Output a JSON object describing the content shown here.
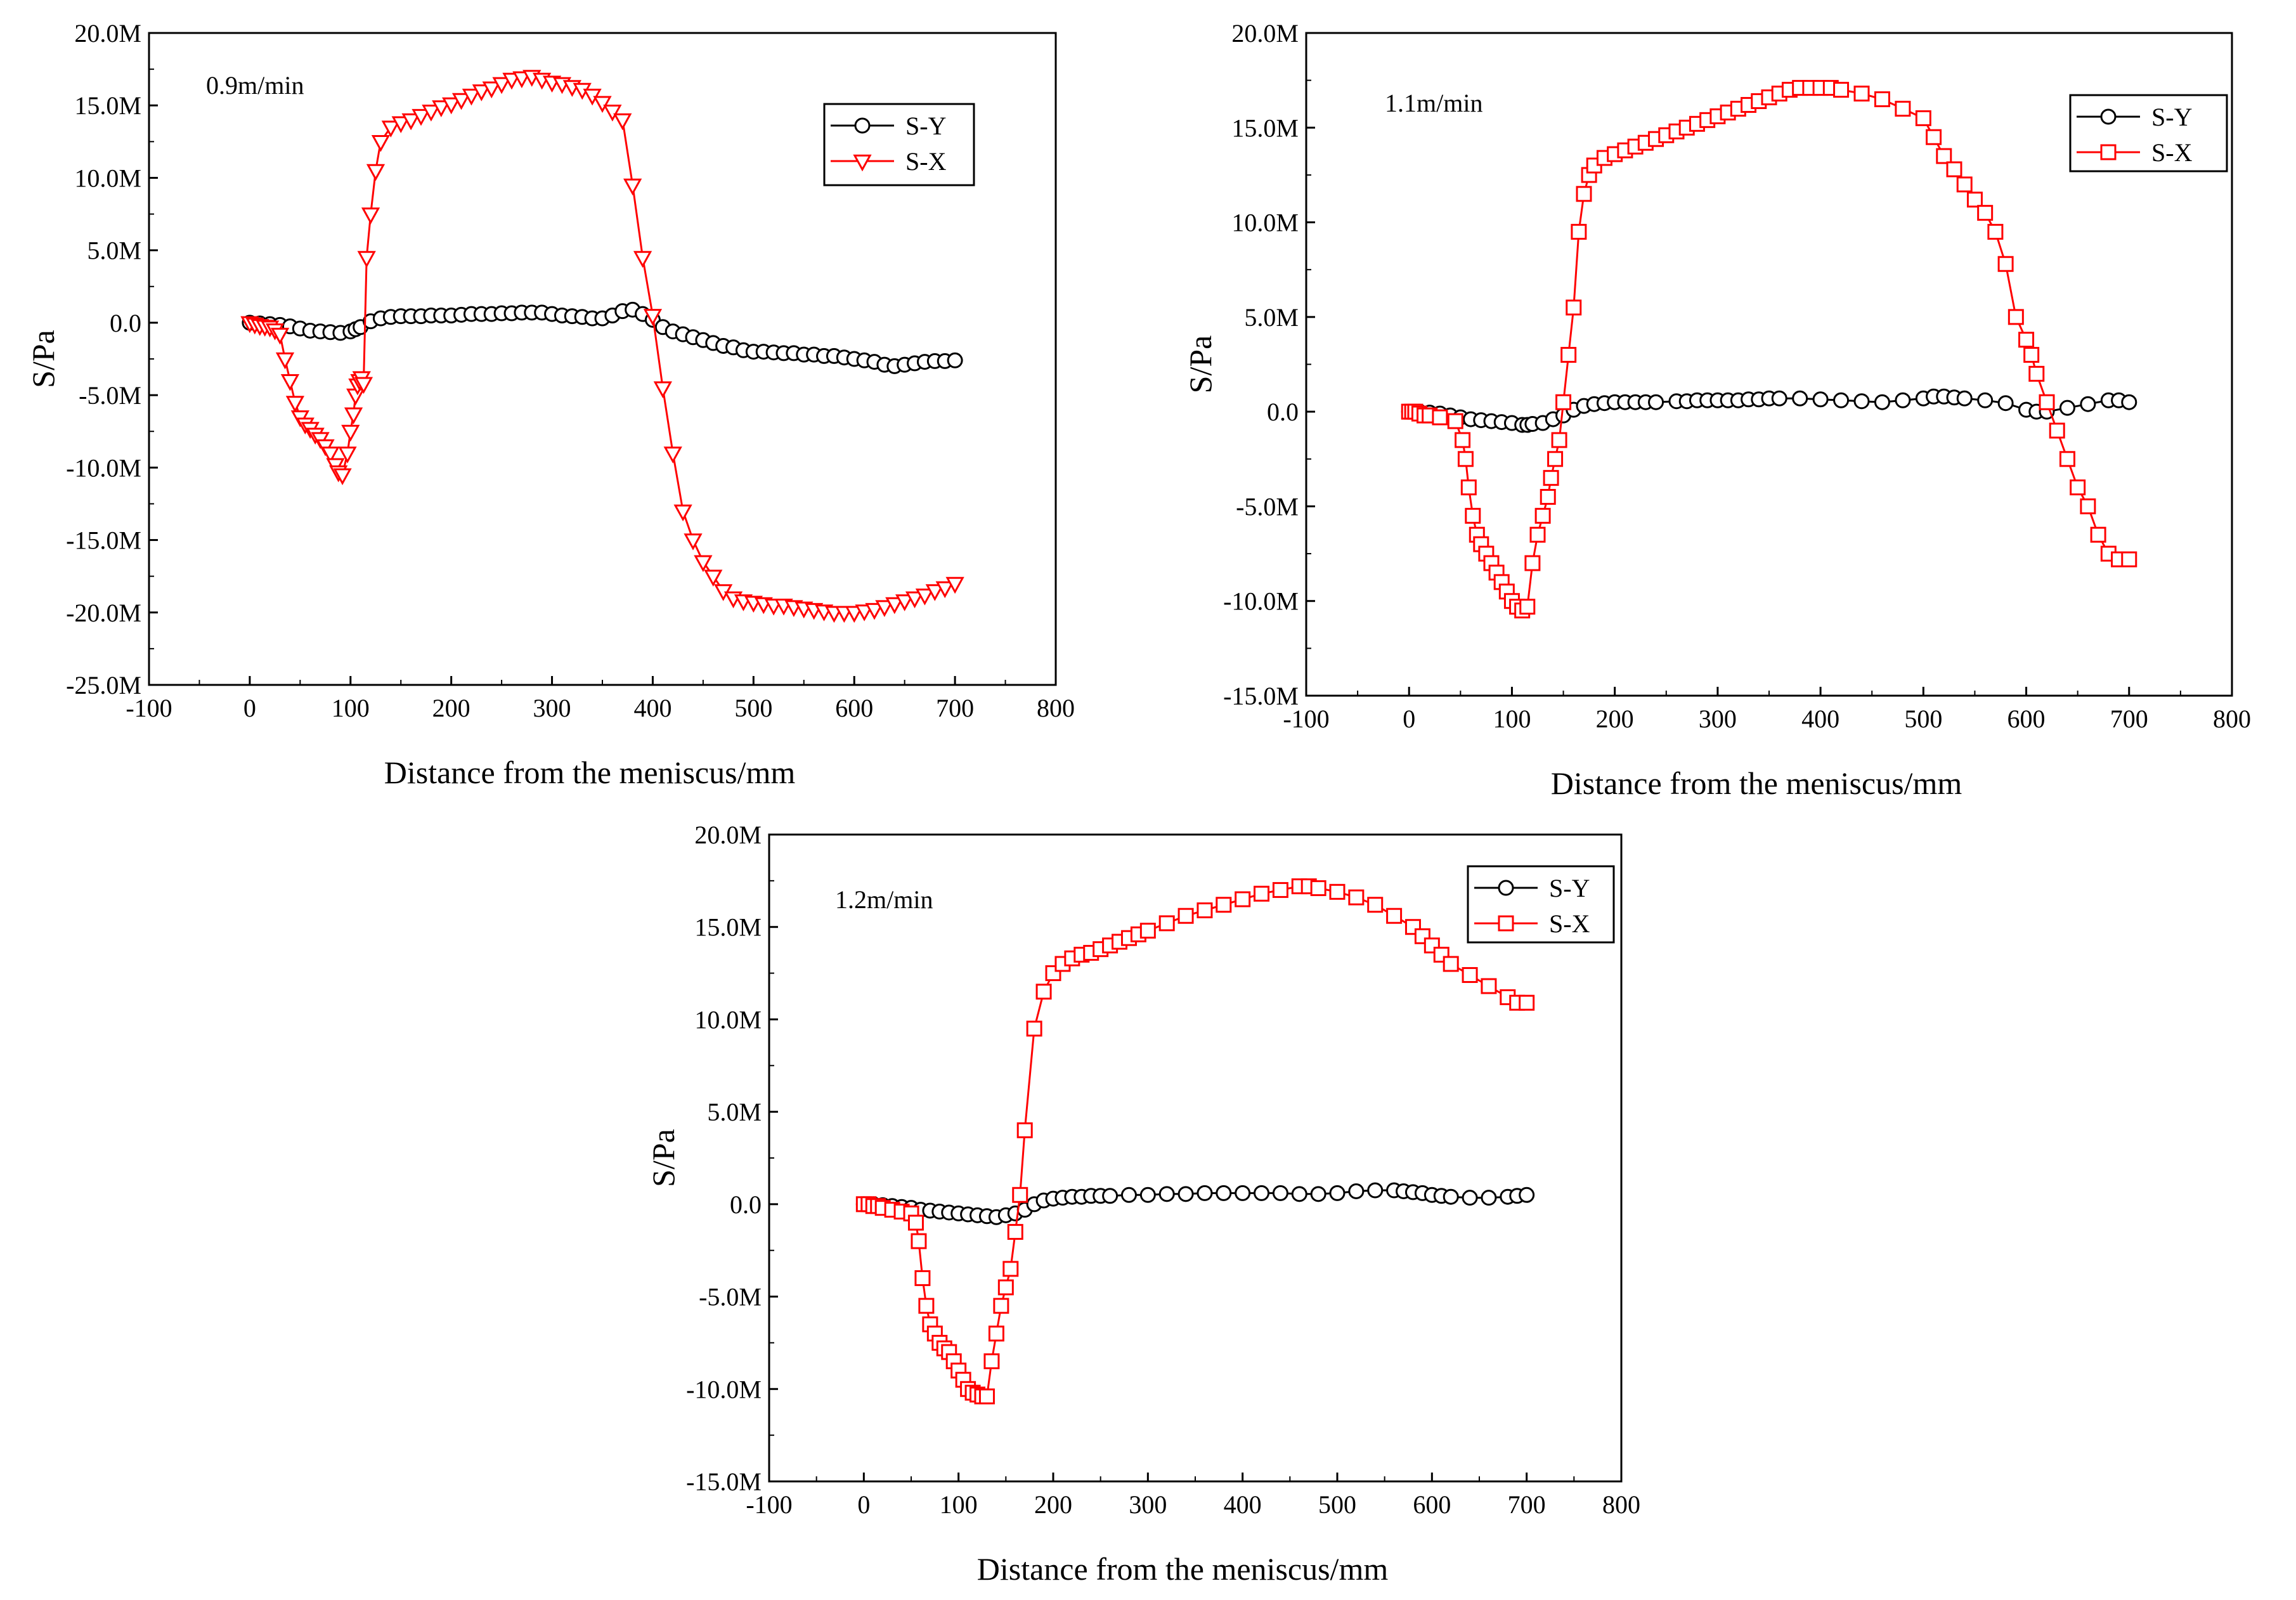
{
  "chart_data": [
    {
      "type": "line",
      "annotation": "0.9m/min",
      "xlabel": "Distance from the meniscus/mm",
      "ylabel": "S/Pa",
      "xlim": [
        -100,
        800
      ],
      "ylim": [
        -25000000,
        20000000
      ],
      "xticks": [
        -100,
        0,
        100,
        200,
        300,
        400,
        500,
        600,
        700,
        800
      ],
      "xtick_labels": [
        "-100",
        "0",
        "100",
        "200",
        "300",
        "400",
        "500",
        "600",
        "700",
        "800"
      ],
      "yticks": [
        -25000000,
        -20000000,
        -15000000,
        -10000000,
        -5000000,
        0,
        5000000,
        10000000,
        15000000,
        20000000
      ],
      "ytick_labels": [
        "-25.0M",
        "-20.0M",
        "-15.0M",
        "-10.0M",
        "-5.0M",
        "0.0",
        "5.0M",
        "10.0M",
        "15.0M",
        "20.0M"
      ],
      "legend_position": "top-right",
      "series": [
        {
          "name": "S-Y",
          "marker": "circle",
          "color": "#000000",
          "x": [
            0,
            10,
            20,
            30,
            40,
            50,
            60,
            70,
            80,
            90,
            100,
            105,
            110,
            120,
            130,
            140,
            150,
            160,
            170,
            180,
            190,
            200,
            210,
            220,
            230,
            240,
            250,
            260,
            270,
            280,
            290,
            300,
            310,
            320,
            330,
            340,
            350,
            360,
            370,
            380,
            390,
            400,
            410,
            420,
            430,
            440,
            450,
            460,
            470,
            480,
            490,
            500,
            510,
            520,
            530,
            540,
            550,
            560,
            570,
            580,
            590,
            600,
            610,
            620,
            630,
            640,
            650,
            660,
            670,
            680,
            690,
            700
          ],
          "y": [
            0,
            -0.05,
            -0.1,
            -0.15,
            -0.25,
            -0.4,
            -0.55,
            -0.6,
            -0.65,
            -0.7,
            -0.6,
            -0.45,
            -0.3,
            0.1,
            0.3,
            0.4,
            0.45,
            0.45,
            0.45,
            0.5,
            0.5,
            0.5,
            0.55,
            0.6,
            0.6,
            0.6,
            0.65,
            0.65,
            0.7,
            0.7,
            0.7,
            0.6,
            0.5,
            0.45,
            0.4,
            0.3,
            0.3,
            0.5,
            0.8,
            0.9,
            0.6,
            0.2,
            -0.3,
            -0.6,
            -0.8,
            -1.0,
            -1.2,
            -1.4,
            -1.6,
            -1.7,
            -1.9,
            -2.0,
            -2.0,
            -2.05,
            -2.1,
            -2.1,
            -2.2,
            -2.2,
            -2.3,
            -2.3,
            -2.4,
            -2.5,
            -2.6,
            -2.7,
            -2.9,
            -3.0,
            -2.9,
            -2.8,
            -2.7,
            -2.65,
            -2.65,
            -2.6
          ]
        },
        {
          "name": "S-X",
          "marker": "triangle-down",
          "color": "#ff0000",
          "x": [
            0,
            5,
            10,
            15,
            20,
            25,
            30,
            35,
            40,
            45,
            50,
            55,
            60,
            65,
            70,
            75,
            80,
            85,
            88,
            92,
            97,
            100,
            103,
            105,
            107,
            109,
            111,
            113,
            116,
            120,
            125,
            130,
            140,
            150,
            160,
            170,
            180,
            190,
            200,
            210,
            220,
            230,
            240,
            250,
            260,
            270,
            280,
            290,
            300,
            310,
            320,
            330,
            340,
            350,
            360,
            370,
            380,
            390,
            400,
            410,
            420,
            430,
            440,
            450,
            460,
            470,
            480,
            490,
            500,
            510,
            520,
            530,
            540,
            550,
            560,
            570,
            580,
            590,
            600,
            610,
            620,
            630,
            640,
            650,
            660,
            670,
            680,
            690,
            700
          ],
          "y": [
            0,
            -0.1,
            -0.2,
            -0.25,
            -0.3,
            -0.5,
            -0.8,
            -2.5,
            -4.0,
            -5.5,
            -6.5,
            -7.0,
            -7.3,
            -7.7,
            -8.0,
            -8.5,
            -9.0,
            -9.8,
            -10.3,
            -10.5,
            -9.0,
            -7.5,
            -6.3,
            -5.0,
            -4.3,
            -4.0,
            -3.8,
            -4.2,
            4.5,
            7.5,
            10.5,
            12.5,
            13.5,
            13.8,
            14.0,
            14.3,
            14.6,
            14.9,
            15.1,
            15.4,
            15.7,
            16.0,
            16.2,
            16.5,
            16.8,
            16.9,
            17.0,
            16.8,
            16.6,
            16.5,
            16.3,
            16.1,
            15.7,
            15.2,
            14.6,
            14.0,
            9.5,
            4.5,
            0.5,
            -4.5,
            -9.0,
            -13.0,
            -15.0,
            -16.5,
            -17.5,
            -18.5,
            -19.0,
            -19.2,
            -19.3,
            -19.4,
            -19.5,
            -19.5,
            -19.6,
            -19.7,
            -19.8,
            -19.9,
            -20.0,
            -20.0,
            -20.0,
            -19.9,
            -19.8,
            -19.6,
            -19.4,
            -19.2,
            -19.0,
            -18.8,
            -18.5,
            -18.3,
            -18.0
          ]
        }
      ]
    },
    {
      "type": "line",
      "annotation": "1.1m/min",
      "xlabel": "Distance from the meniscus/mm",
      "ylabel": "S/Pa",
      "xlim": [
        -100,
        800
      ],
      "ylim": [
        -15000000,
        20000000
      ],
      "xticks": [
        -100,
        0,
        100,
        200,
        300,
        400,
        500,
        600,
        700,
        800
      ],
      "xtick_labels": [
        "-100",
        "0",
        "100",
        "200",
        "300",
        "400",
        "500",
        "600",
        "700",
        "800"
      ],
      "yticks": [
        -15000000,
        -10000000,
        -5000000,
        0,
        5000000,
        10000000,
        15000000,
        20000000
      ],
      "ytick_labels": [
        "-15.0M",
        "-10.0M",
        "-5.0M",
        "0.0",
        "5.0M",
        "10.0M",
        "15.0M",
        "20.0M"
      ],
      "legend_position": "top-right",
      "series": [
        {
          "name": "S-Y",
          "marker": "circle",
          "color": "#000000",
          "x": [
            0,
            10,
            20,
            30,
            40,
            50,
            60,
            70,
            80,
            90,
            100,
            110,
            115,
            120,
            130,
            140,
            150,
            160,
            170,
            180,
            190,
            200,
            210,
            220,
            230,
            240,
            260,
            270,
            280,
            290,
            300,
            310,
            320,
            330,
            340,
            350,
            360,
            380,
            400,
            420,
            440,
            460,
            480,
            500,
            510,
            520,
            530,
            540,
            560,
            580,
            600,
            610,
            620,
            640,
            660,
            680,
            690,
            700
          ],
          "y": [
            0,
            0,
            -0.05,
            -0.1,
            -0.2,
            -0.3,
            -0.4,
            -0.45,
            -0.5,
            -0.55,
            -0.6,
            -0.7,
            -0.7,
            -0.65,
            -0.6,
            -0.4,
            -0.2,
            0.1,
            0.3,
            0.4,
            0.45,
            0.5,
            0.5,
            0.5,
            0.5,
            0.5,
            0.55,
            0.55,
            0.6,
            0.6,
            0.6,
            0.6,
            0.6,
            0.65,
            0.65,
            0.7,
            0.7,
            0.7,
            0.65,
            0.6,
            0.55,
            0.5,
            0.6,
            0.7,
            0.8,
            0.8,
            0.75,
            0.7,
            0.6,
            0.45,
            0.1,
            0.0,
            0.0,
            0.2,
            0.4,
            0.6,
            0.6,
            0.5
          ]
        },
        {
          "name": "S-X",
          "marker": "square",
          "color": "#ff0000",
          "x": [
            0,
            3,
            6,
            10,
            15,
            20,
            30,
            45,
            52,
            55,
            58,
            62,
            66,
            70,
            75,
            80,
            85,
            90,
            95,
            100,
            105,
            110,
            115,
            120,
            125,
            130,
            135,
            138,
            142,
            146,
            150,
            155,
            160,
            165,
            170,
            175,
            180,
            190,
            200,
            210,
            220,
            230,
            240,
            250,
            260,
            270,
            280,
            290,
            300,
            310,
            320,
            330,
            340,
            350,
            360,
            370,
            380,
            390,
            400,
            410,
            420,
            440,
            460,
            480,
            500,
            510,
            520,
            530,
            540,
            550,
            560,
            570,
            580,
            590,
            600,
            605,
            610,
            620,
            630,
            640,
            650,
            660,
            670,
            680,
            690,
            700
          ],
          "y": [
            0,
            0,
            0,
            -0.1,
            -0.2,
            -0.2,
            -0.3,
            -0.5,
            -1.5,
            -2.5,
            -4.0,
            -5.5,
            -6.5,
            -7.0,
            -7.5,
            -8.0,
            -8.5,
            -9.0,
            -9.5,
            -10.0,
            -10.3,
            -10.5,
            -10.3,
            -8.0,
            -6.5,
            -5.5,
            -4.5,
            -3.5,
            -2.5,
            -1.5,
            0.5,
            3.0,
            5.5,
            9.5,
            11.5,
            12.5,
            13.0,
            13.4,
            13.6,
            13.8,
            14.0,
            14.2,
            14.4,
            14.6,
            14.8,
            15.0,
            15.2,
            15.4,
            15.6,
            15.8,
            16.0,
            16.2,
            16.4,
            16.6,
            16.8,
            17.0,
            17.1,
            17.1,
            17.1,
            17.1,
            17.0,
            16.8,
            16.5,
            16.0,
            15.5,
            14.5,
            13.5,
            12.8,
            12.0,
            11.2,
            10.5,
            9.5,
            7.8,
            5.0,
            3.8,
            3.0,
            2.0,
            0.5,
            -1.0,
            -2.5,
            -4.0,
            -5.0,
            -6.5,
            -7.5,
            -7.8,
            -7.8
          ]
        }
      ]
    },
    {
      "type": "line",
      "annotation": "1.2m/min",
      "xlabel": "Distance from the meniscus/mm",
      "ylabel": "S/Pa",
      "xlim": [
        -100,
        800
      ],
      "ylim": [
        -15000000,
        20000000
      ],
      "xticks": [
        -100,
        0,
        100,
        200,
        300,
        400,
        500,
        600,
        700,
        800
      ],
      "xtick_labels": [
        "-100",
        "0",
        "100",
        "200",
        "300",
        "400",
        "500",
        "600",
        "700",
        "800"
      ],
      "yticks": [
        -15000000,
        -10000000,
        -5000000,
        0,
        5000000,
        10000000,
        15000000,
        20000000
      ],
      "ytick_labels": [
        "-15.0M",
        "-10.0M",
        "-5.0M",
        "0.0",
        "5.0M",
        "10.0M",
        "15.0M",
        "20.0M"
      ],
      "legend_position": "top-right",
      "series": [
        {
          "name": "S-Y",
          "marker": "circle",
          "color": "#000000",
          "x": [
            0,
            10,
            20,
            30,
            40,
            50,
            60,
            70,
            80,
            90,
            100,
            110,
            120,
            130,
            140,
            150,
            160,
            170,
            180,
            190,
            200,
            210,
            220,
            230,
            240,
            250,
            260,
            280,
            300,
            320,
            340,
            360,
            380,
            400,
            420,
            440,
            460,
            480,
            500,
            520,
            540,
            560,
            570,
            580,
            590,
            600,
            610,
            620,
            640,
            660,
            680,
            690,
            700
          ],
          "y": [
            0,
            0,
            -0.05,
            -0.1,
            -0.15,
            -0.2,
            -0.3,
            -0.35,
            -0.4,
            -0.45,
            -0.5,
            -0.55,
            -0.6,
            -0.65,
            -0.7,
            -0.6,
            -0.5,
            -0.3,
            0,
            0.2,
            0.3,
            0.35,
            0.4,
            0.4,
            0.45,
            0.45,
            0.45,
            0.5,
            0.5,
            0.55,
            0.55,
            0.6,
            0.6,
            0.6,
            0.6,
            0.6,
            0.55,
            0.55,
            0.6,
            0.7,
            0.75,
            0.75,
            0.7,
            0.65,
            0.6,
            0.5,
            0.45,
            0.4,
            0.35,
            0.35,
            0.4,
            0.45,
            0.5
          ]
        },
        {
          "name": "S-X",
          "marker": "square",
          "color": "#ff0000",
          "x": [
            0,
            5,
            10,
            15,
            20,
            30,
            40,
            50,
            55,
            58,
            62,
            66,
            70,
            75,
            80,
            85,
            90,
            95,
            100,
            105,
            110,
            115,
            120,
            125,
            130,
            135,
            140,
            145,
            150,
            155,
            160,
            165,
            170,
            180,
            190,
            200,
            210,
            220,
            230,
            240,
            250,
            260,
            270,
            280,
            290,
            300,
            320,
            340,
            360,
            380,
            400,
            420,
            440,
            460,
            470,
            480,
            500,
            520,
            540,
            560,
            580,
            590,
            600,
            610,
            620,
            640,
            660,
            680,
            690,
            700
          ],
          "y": [
            0,
            0,
            -0.1,
            -0.1,
            -0.2,
            -0.3,
            -0.4,
            -0.5,
            -1.0,
            -2.0,
            -4.0,
            -5.5,
            -6.5,
            -7.0,
            -7.5,
            -7.8,
            -8.0,
            -8.5,
            -9.0,
            -9.5,
            -10.0,
            -10.2,
            -10.3,
            -10.4,
            -10.4,
            -8.5,
            -7.0,
            -5.5,
            -4.5,
            -3.5,
            -1.5,
            0.5,
            4.0,
            9.5,
            11.5,
            12.5,
            13.0,
            13.3,
            13.5,
            13.6,
            13.8,
            14.0,
            14.2,
            14.4,
            14.6,
            14.8,
            15.2,
            15.6,
            15.9,
            16.2,
            16.5,
            16.8,
            17.0,
            17.2,
            17.2,
            17.1,
            16.9,
            16.6,
            16.2,
            15.6,
            15.0,
            14.5,
            14.0,
            13.5,
            13.0,
            12.4,
            11.8,
            11.2,
            10.9,
            10.9
          ]
        }
      ]
    }
  ]
}
